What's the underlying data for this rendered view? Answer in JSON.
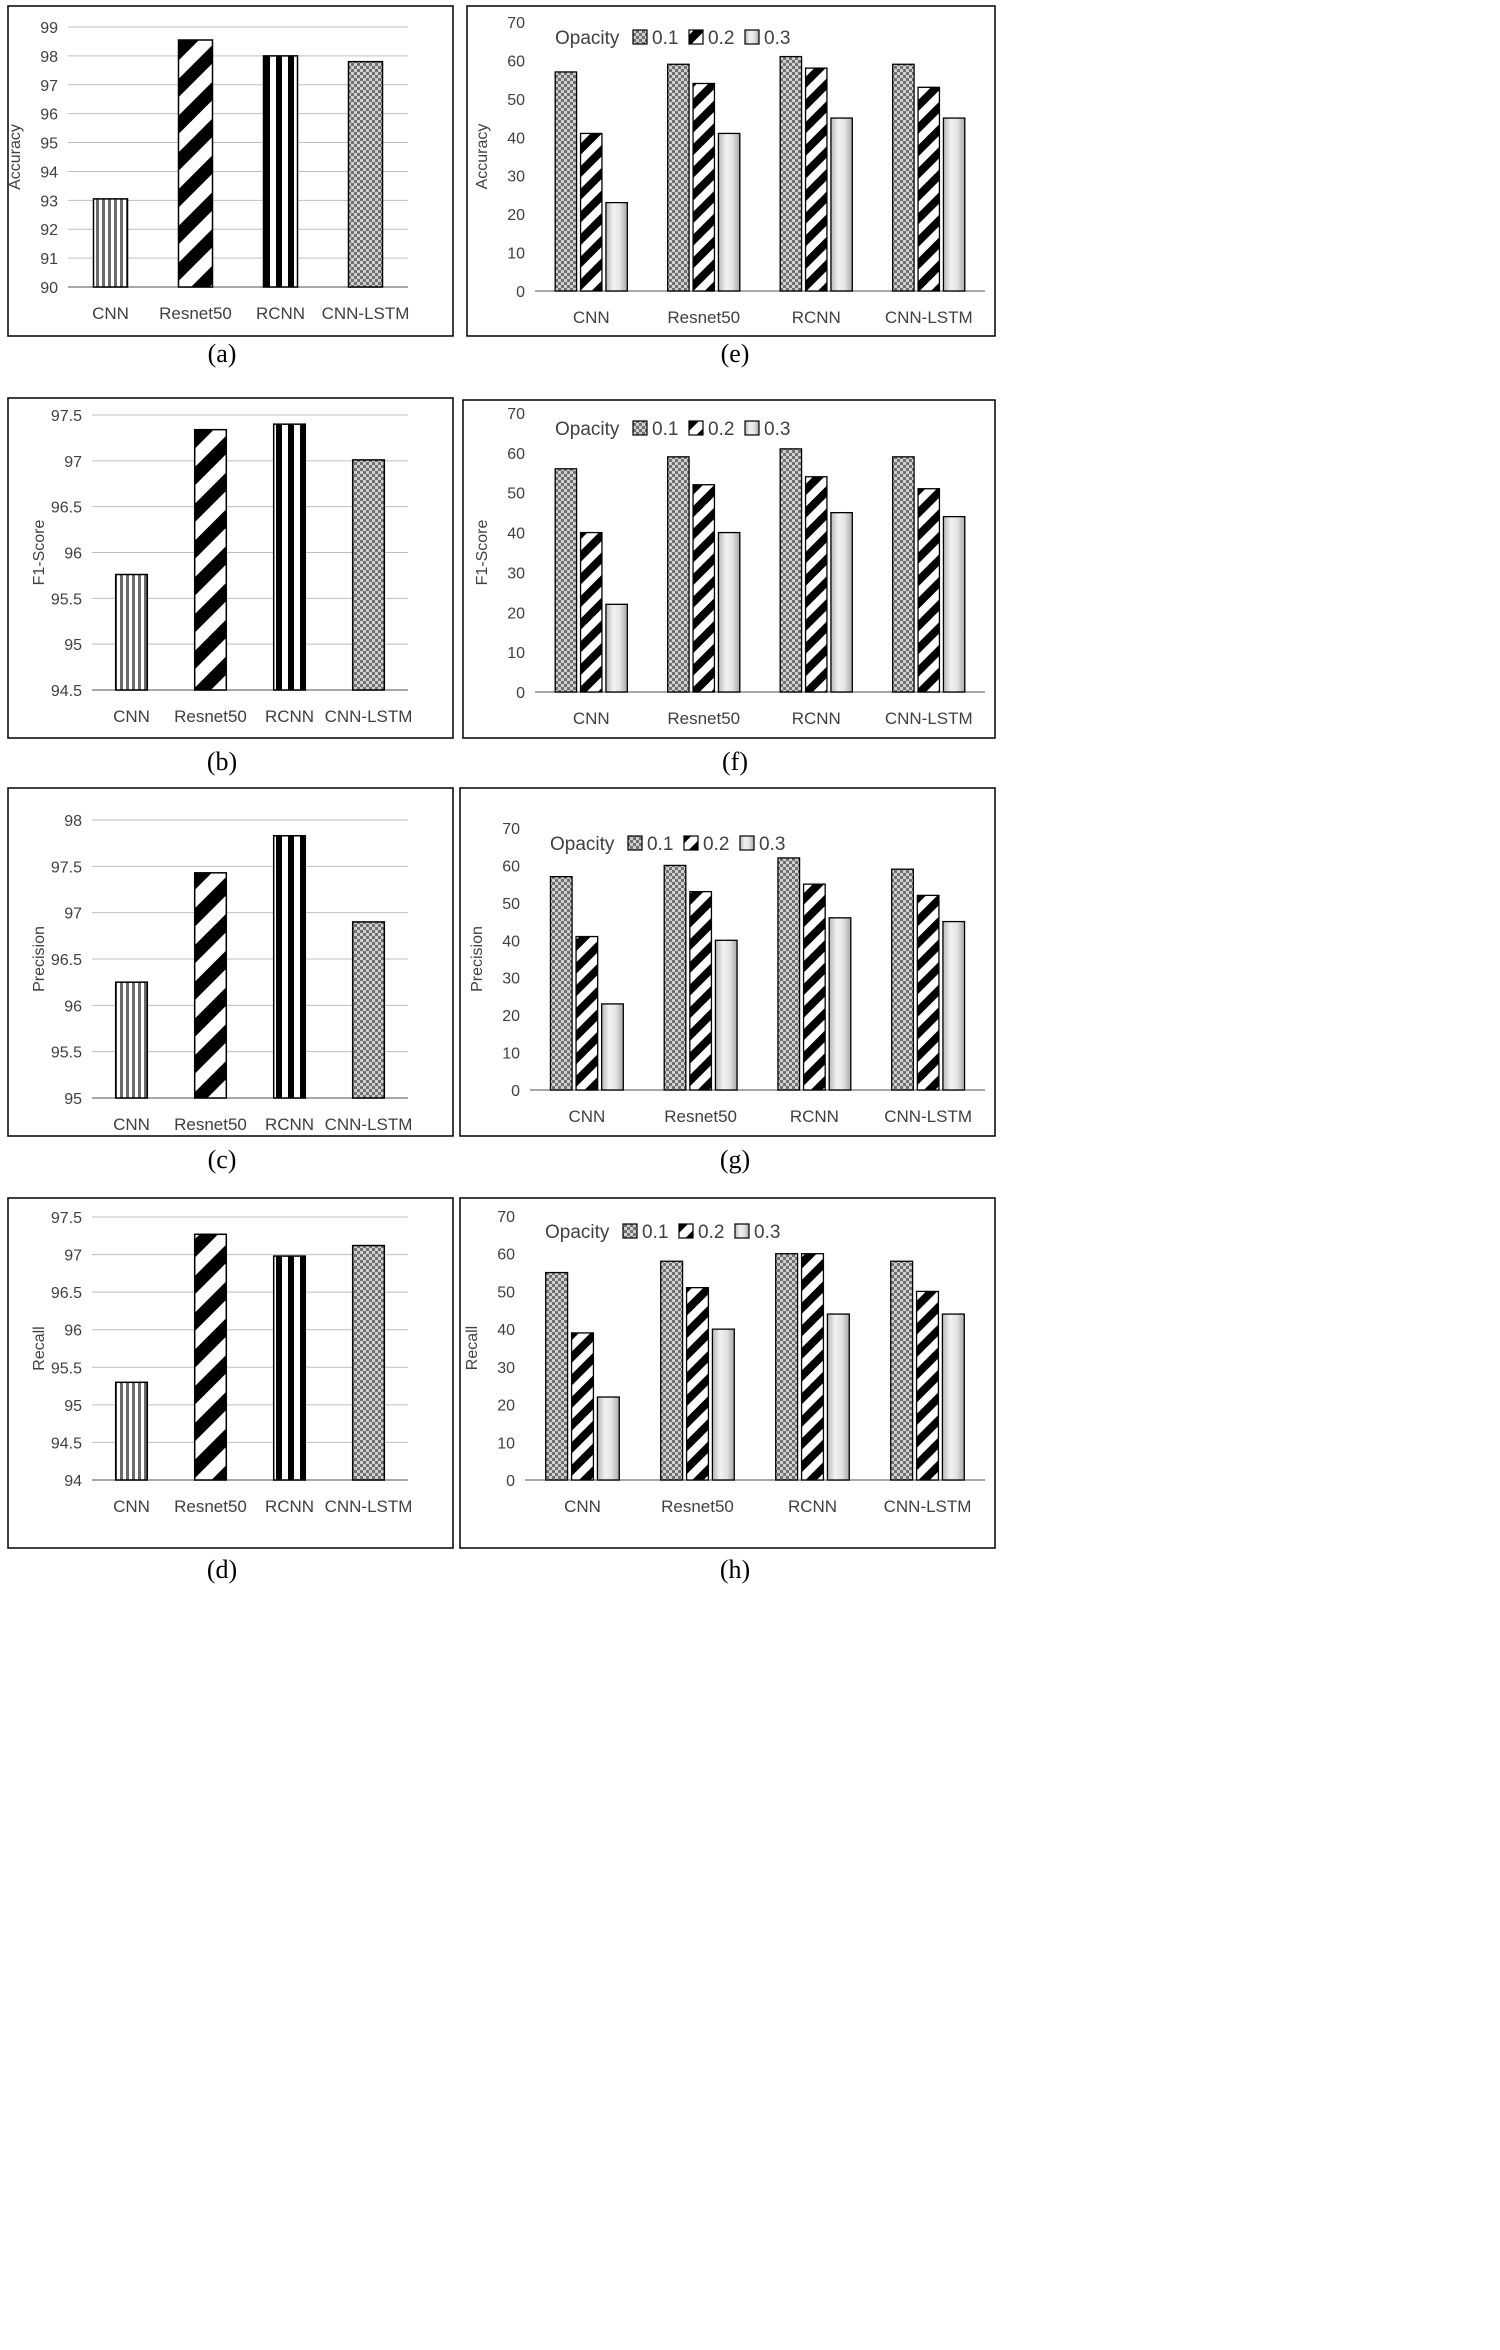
{
  "colors": {
    "frame": "#000000",
    "grid": "#bfbfbf",
    "axis": "#8c8c8c",
    "text": "#404040",
    "bar_outline": "#000000"
  },
  "pattern_names": [
    "vertical-stripes",
    "diagonal-stripes",
    "bold-vertical-stripes",
    "checker"
  ],
  "chart_data": [
    {
      "id": "a",
      "caption": "(a)",
      "type": "bar",
      "title": "",
      "xlabel": "",
      "ylabel": "Accuracy",
      "categories": [
        "CNN",
        "Resnet50",
        "RCNN",
        "CNN-LSTM"
      ],
      "values": [
        93.05,
        98.55,
        98.0,
        97.8
      ],
      "ylim": [
        90,
        99
      ],
      "yticks": [
        "90",
        "91",
        "92",
        "93",
        "94",
        "95",
        "96",
        "97",
        "98",
        "99"
      ],
      "grid": true
    },
    {
      "id": "b",
      "caption": "(b)",
      "type": "bar",
      "title": "",
      "xlabel": "",
      "ylabel": "F1-Score",
      "categories": [
        "CNN",
        "Resnet50",
        "RCNN",
        "CNN-LSTM"
      ],
      "values": [
        95.76,
        97.34,
        97.4,
        97.01
      ],
      "ylim": [
        94.5,
        97.5
      ],
      "yticks": [
        "94.5",
        "95",
        "95.5",
        "96",
        "96.5",
        "97",
        "97.5"
      ],
      "grid": true
    },
    {
      "id": "c",
      "caption": "(c)",
      "type": "bar",
      "title": "",
      "xlabel": "",
      "ylabel": "Precision",
      "categories": [
        "CNN",
        "Resnet50",
        "RCNN",
        "CNN-LSTM"
      ],
      "values": [
        96.25,
        97.43,
        97.83,
        96.9
      ],
      "ylim": [
        95,
        98
      ],
      "yticks": [
        "95",
        "95.5",
        "96",
        "96.5",
        "97",
        "97.5",
        "98"
      ],
      "grid": true
    },
    {
      "id": "d",
      "caption": "(d)",
      "type": "bar",
      "title": "",
      "xlabel": "",
      "ylabel": "Recall",
      "categories": [
        "CNN",
        "Resnet50",
        "RCNN",
        "CNN-LSTM"
      ],
      "values": [
        95.3,
        97.27,
        96.98,
        97.12
      ],
      "ylim": [
        94,
        97.5
      ],
      "yticks": [
        "94",
        "94.5",
        "95",
        "95.5",
        "96",
        "96.5",
        "97",
        "97.5"
      ],
      "grid": true
    },
    {
      "id": "e",
      "caption": "(e)",
      "type": "bar",
      "title": "",
      "xlabel": "",
      "ylabel": "Accuracy",
      "categories": [
        "CNN",
        "Resnet50",
        "RCNN",
        "CNN-LSTM"
      ],
      "legend_title": "Opacity",
      "legend_position": "top-left",
      "series": [
        {
          "name": "0.1",
          "values": [
            57,
            59,
            61,
            59
          ]
        },
        {
          "name": "0.2",
          "values": [
            41,
            54,
            58,
            53
          ]
        },
        {
          "name": "0.3",
          "values": [
            23,
            41,
            45,
            45
          ]
        }
      ],
      "ylim": [
        0,
        70
      ],
      "yticks": [
        "0",
        "10",
        "20",
        "30",
        "40",
        "50",
        "60",
        "70"
      ],
      "grid": false
    },
    {
      "id": "f",
      "caption": "(f)",
      "type": "bar",
      "title": "",
      "xlabel": "",
      "ylabel": "F1-Score",
      "categories": [
        "CNN",
        "Resnet50",
        "RCNN",
        "CNN-LSTM"
      ],
      "legend_title": "Opacity",
      "legend_position": "top-left",
      "series": [
        {
          "name": "0.1",
          "values": [
            56,
            59,
            61,
            59
          ]
        },
        {
          "name": "0.2",
          "values": [
            40,
            52,
            54,
            51
          ]
        },
        {
          "name": "0.3",
          "values": [
            22,
            40,
            45,
            44
          ]
        }
      ],
      "ylim": [
        0,
        70
      ],
      "yticks": [
        "0",
        "10",
        "20",
        "30",
        "40",
        "50",
        "60",
        "70"
      ],
      "grid": false
    },
    {
      "id": "g",
      "caption": "(g)",
      "type": "bar",
      "title": "",
      "xlabel": "",
      "ylabel": "Precision",
      "categories": [
        "CNN",
        "Resnet50",
        "RCNN",
        "CNN-LSTM"
      ],
      "legend_title": "Opacity",
      "legend_position": "top-left",
      "series": [
        {
          "name": "0.1",
          "values": [
            57,
            60,
            62,
            59
          ]
        },
        {
          "name": "0.2",
          "values": [
            41,
            53,
            55,
            52
          ]
        },
        {
          "name": "0.3",
          "values": [
            23,
            40,
            46,
            45
          ]
        }
      ],
      "ylim": [
        0,
        70
      ],
      "yticks": [
        "0",
        "10",
        "20",
        "30",
        "40",
        "50",
        "60",
        "70"
      ],
      "grid": false
    },
    {
      "id": "h",
      "caption": "(h)",
      "type": "bar",
      "title": "",
      "xlabel": "",
      "ylabel": "Recall",
      "categories": [
        "CNN",
        "Resnet50",
        "RCNN",
        "CNN-LSTM"
      ],
      "legend_title": "Opacity",
      "legend_position": "top-left",
      "series": [
        {
          "name": "0.1",
          "values": [
            55,
            58,
            60,
            58
          ]
        },
        {
          "name": "0.2",
          "values": [
            39,
            51,
            60,
            50
          ]
        },
        {
          "name": "0.3",
          "values": [
            22,
            40,
            44,
            44
          ]
        }
      ],
      "ylim": [
        0,
        70
      ],
      "yticks": [
        "0",
        "10",
        "20",
        "30",
        "40",
        "50",
        "60",
        "70"
      ],
      "grid": false
    }
  ]
}
